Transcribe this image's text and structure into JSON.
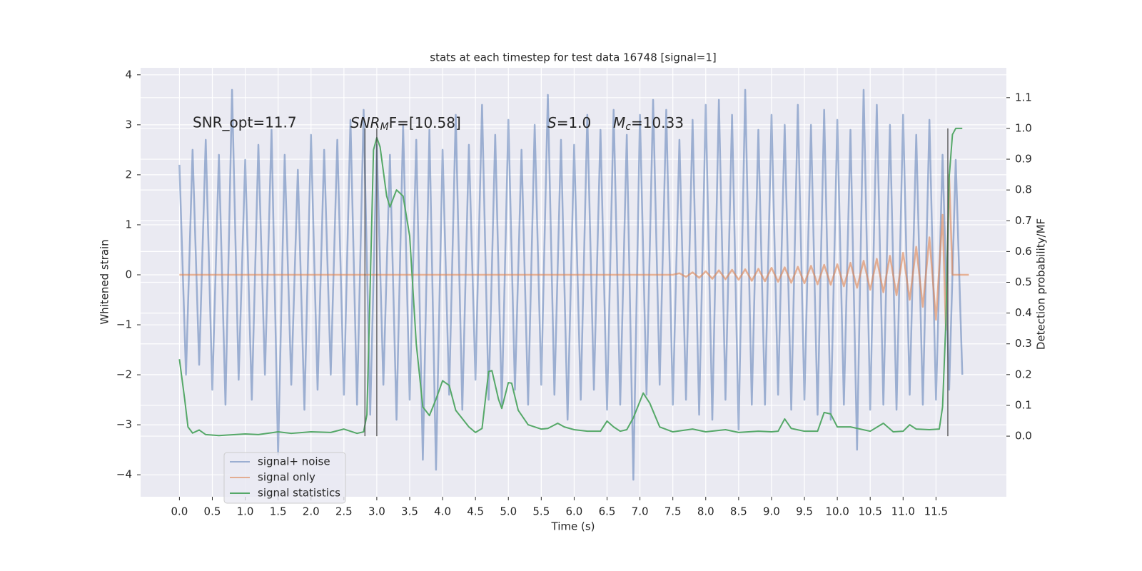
{
  "chart_data": {
    "type": "line",
    "title": "stats at each timestep for test data 16748 [signal=1]",
    "x_label": "Time (s)",
    "y_label": "Whitened strain",
    "y2_label": "Detection probability/MF",
    "xlim": [
      -0.59,
      12.57
    ],
    "ylim": [
      -4.44,
      4.14
    ],
    "y2lim": [
      -0.197,
      1.197
    ],
    "xticks": [
      {
        "value": 0,
        "label": "0.0"
      },
      {
        "value": 0.5,
        "label": "0.5"
      },
      {
        "value": 1,
        "label": "1.0"
      },
      {
        "value": 1.5,
        "label": "1.5"
      },
      {
        "value": 2,
        "label": "2.0"
      },
      {
        "value": 2.5,
        "label": "2.5"
      },
      {
        "value": 3,
        "label": "3.0"
      },
      {
        "value": 3.5,
        "label": "3.5"
      },
      {
        "value": 4,
        "label": "4.0"
      },
      {
        "value": 4.5,
        "label": "4.5"
      },
      {
        "value": 5,
        "label": "5.0"
      },
      {
        "value": 5.5,
        "label": "5.5"
      },
      {
        "value": 6,
        "label": "6.0"
      },
      {
        "value": 6.5,
        "label": "6.5"
      },
      {
        "value": 7,
        "label": "7.0"
      },
      {
        "value": 7.5,
        "label": "7.5"
      },
      {
        "value": 8,
        "label": "8.0"
      },
      {
        "value": 8.5,
        "label": "8.5"
      },
      {
        "value": 9,
        "label": "9.0"
      },
      {
        "value": 9.5,
        "label": "9.5"
      },
      {
        "value": 10,
        "label": "10.0"
      },
      {
        "value": 10.5,
        "label": "10.5"
      },
      {
        "value": 11,
        "label": "11.0"
      },
      {
        "value": 11.5,
        "label": "11.5"
      }
    ],
    "yticks": [
      {
        "value": -4,
        "label": "−4"
      },
      {
        "value": -3,
        "label": "−3"
      },
      {
        "value": -2,
        "label": "−2"
      },
      {
        "value": -1,
        "label": "−1"
      },
      0,
      1,
      2,
      3,
      4
    ],
    "y2ticks": [
      {
        "value": 0,
        "label": "0.0"
      },
      {
        "value": 0.1,
        "label": "0.1"
      },
      {
        "value": 0.2,
        "label": "0.2"
      },
      {
        "value": 0.3,
        "label": "0.3"
      },
      {
        "value": 0.4,
        "label": "0.4"
      },
      {
        "value": 0.5,
        "label": "0.5"
      },
      {
        "value": 0.6,
        "label": "0.6"
      },
      {
        "value": 0.7,
        "label": "0.7"
      },
      {
        "value": 0.8,
        "label": "0.8"
      },
      {
        "value": 0.9,
        "label": "0.9"
      },
      {
        "value": 1,
        "label": "1.0"
      },
      {
        "value": 1.1,
        "label": "1.1"
      }
    ],
    "grid": true,
    "legend": "lower left",
    "series": [
      {
        "name": "signal+ noise",
        "color": "#4c72b0",
        "opacity": 0.5,
        "x": [
          0,
          0.1,
          0.2,
          0.3,
          0.4,
          0.5,
          0.6,
          0.7,
          0.8,
          0.9,
          1,
          1.1,
          1.2,
          1.3,
          1.4,
          1.5,
          1.6,
          1.7,
          1.8,
          1.9,
          2,
          2.1,
          2.2,
          2.3,
          2.4,
          2.5,
          2.6,
          2.7,
          2.8,
          2.9,
          3,
          3.1,
          3.2,
          3.3,
          3.4,
          3.5,
          3.6,
          3.7,
          3.8,
          3.9,
          4,
          4.1,
          4.2,
          4.3,
          4.4,
          4.5,
          4.6,
          4.7,
          4.8,
          4.9,
          5,
          5.1,
          5.2,
          5.3,
          5.4,
          5.5,
          5.6,
          5.7,
          5.8,
          5.9,
          6,
          6.1,
          6.2,
          6.3,
          6.4,
          6.5,
          6.6,
          6.7,
          6.8,
          6.9,
          7,
          7.1,
          7.2,
          7.3,
          7.4,
          7.5,
          7.6,
          7.7,
          7.8,
          7.9,
          8,
          8.1,
          8.2,
          8.3,
          8.4,
          8.5,
          8.6,
          8.7,
          8.8,
          8.9,
          9,
          9.1,
          9.2,
          9.3,
          9.4,
          9.5,
          9.6,
          9.7,
          9.8,
          9.9,
          10,
          10.1,
          10.2,
          10.3,
          10.4,
          10.5,
          10.6,
          10.7,
          10.8,
          10.9,
          11,
          11.1,
          11.2,
          11.3,
          11.4,
          11.5,
          11.6,
          11.7,
          11.8,
          11.9
        ],
        "values": [
          2.2,
          -2.0,
          2.5,
          -1.8,
          2.7,
          -2.3,
          2.4,
          -2.6,
          3.7,
          -2.1,
          2.3,
          -2.5,
          2.6,
          -2.0,
          2.9,
          -3.6,
          2.4,
          -2.2,
          2.1,
          -2.7,
          2.8,
          -2.3,
          2.5,
          -2.0,
          2.7,
          -2.4,
          3.1,
          -2.6,
          3.3,
          -2.8,
          2.6,
          -2.2,
          2.4,
          -2.9,
          3.0,
          -2.5,
          2.7,
          -3.7,
          2.9,
          -3.9,
          2.5,
          -2.4,
          3.2,
          -2.7,
          2.6,
          -2.1,
          3.4,
          -2.5,
          2.8,
          -2.6,
          3.1,
          -2.3,
          2.5,
          -2.6,
          3.0,
          -2.2,
          3.6,
          -2.4,
          2.7,
          -2.9,
          2.6,
          -2.5,
          3.2,
          -2.3,
          2.9,
          -2.7,
          3.3,
          -2.6,
          2.8,
          -4.1,
          3.2,
          -2.4,
          3.5,
          -2.2,
          3.3,
          -2.6,
          2.7,
          -2.5,
          3.1,
          -2.8,
          3.4,
          -2.9,
          3.5,
          -2.5,
          3.2,
          -3.1,
          3.7,
          -2.6,
          2.9,
          -2.6,
          3.2,
          -2.4,
          3.0,
          -2.7,
          3.4,
          -2.5,
          3.0,
          -2.8,
          3.3,
          -2.9,
          3.1,
          -2.6,
          2.9,
          -3.5,
          3.7,
          -2.7,
          3.4,
          -2.6,
          3.0,
          -2.7,
          3.2,
          -2.4,
          2.8,
          -2.6,
          3.1,
          -2.5,
          2.4,
          -2.3,
          2.3,
          -2.0
        ]
      },
      {
        "name": "signal only",
        "color": "#dd8452",
        "opacity": 0.6,
        "x": [
          0,
          7.5,
          7.6,
          7.7,
          7.8,
          7.9,
          8,
          8.1,
          8.2,
          8.3,
          8.4,
          8.5,
          8.6,
          8.7,
          8.8,
          8.9,
          9,
          9.1,
          9.2,
          9.3,
          9.4,
          9.5,
          9.6,
          9.7,
          9.8,
          9.9,
          10,
          10.1,
          10.2,
          10.3,
          10.4,
          10.5,
          10.6,
          10.7,
          10.8,
          10.9,
          11,
          11.1,
          11.2,
          11.3,
          11.4,
          11.5,
          11.6,
          11.65,
          11.7,
          11.75,
          12
        ],
        "values": [
          0,
          0,
          0.03,
          -0.04,
          0.05,
          -0.06,
          0.07,
          -0.08,
          0.09,
          -0.09,
          0.1,
          -0.1,
          0.11,
          -0.12,
          0.12,
          -0.13,
          0.14,
          -0.14,
          0.15,
          -0.16,
          0.16,
          -0.17,
          0.18,
          -0.19,
          0.2,
          -0.2,
          0.21,
          -0.23,
          0.24,
          -0.26,
          0.28,
          -0.3,
          0.32,
          -0.35,
          0.38,
          -0.41,
          0.44,
          -0.5,
          0.56,
          -0.64,
          0.75,
          -0.9,
          1.2,
          -1.1,
          2.0,
          0,
          0
        ]
      },
      {
        "name": "signal statistics",
        "color": "#55a868",
        "opacity": 1,
        "axis": "y2",
        "x": [
          0,
          0.08,
          0.13,
          0.2,
          0.3,
          0.4,
          0.6,
          1,
          1.2,
          1.5,
          1.7,
          2,
          2.3,
          2.5,
          2.7,
          2.8,
          2.85,
          2.9,
          2.95,
          3,
          3.05,
          3.1,
          3.15,
          3.2,
          3.3,
          3.4,
          3.5,
          3.6,
          3.7,
          3.8,
          3.9,
          4,
          4.1,
          4.2,
          4.4,
          4.5,
          4.6,
          4.7,
          4.75,
          4.85,
          4.9,
          5,
          5.05,
          5.15,
          5.3,
          5.5,
          5.6,
          5.75,
          5.85,
          6,
          6.2,
          6.4,
          6.5,
          6.6,
          6.7,
          6.8,
          6.9,
          7.05,
          7.15,
          7.3,
          7.5,
          7.8,
          8,
          8.3,
          8.5,
          8.8,
          9,
          9.1,
          9.2,
          9.3,
          9.5,
          9.7,
          9.8,
          9.9,
          10,
          10.2,
          10.5,
          10.7,
          10.85,
          11,
          11.1,
          11.2,
          11.4,
          11.55,
          11.6,
          11.65,
          11.7,
          11.75,
          11.8,
          11.9
        ],
        "values": [
          0.25,
          0.12,
          0.03,
          0.01,
          0.02,
          0.005,
          0.002,
          0.007,
          0.005,
          0.014,
          0.009,
          0.014,
          0.012,
          0.023,
          0.009,
          0.014,
          0.07,
          0.49,
          0.93,
          0.97,
          0.94,
          0.86,
          0.78,
          0.745,
          0.8,
          0.78,
          0.65,
          0.3,
          0.095,
          0.067,
          0.12,
          0.18,
          0.165,
          0.084,
          0.03,
          0.012,
          0.025,
          0.21,
          0.213,
          0.12,
          0.09,
          0.174,
          0.172,
          0.084,
          0.037,
          0.023,
          0.025,
          0.042,
          0.03,
          0.021,
          0.016,
          0.016,
          0.049,
          0.03,
          0.016,
          0.021,
          0.06,
          0.14,
          0.107,
          0.03,
          0.014,
          0.023,
          0.014,
          0.021,
          0.012,
          0.016,
          0.014,
          0.016,
          0.056,
          0.025,
          0.016,
          0.016,
          0.077,
          0.072,
          0.03,
          0.03,
          0.016,
          0.042,
          0.014,
          0.016,
          0.037,
          0.023,
          0.021,
          0.023,
          0.095,
          0.37,
          0.84,
          0.98,
          1.0,
          1.0
        ]
      }
    ],
    "vlines": [
      {
        "x": 2.82,
        "from": 0,
        "to": 1
      },
      {
        "x": 3.0,
        "from": 0,
        "to": 1
      },
      {
        "x": 11.68,
        "from": 0,
        "to": 1
      }
    ],
    "annotations": [
      {
        "text": "SNR_opt=11.7"
      },
      {
        "main": "SNR",
        "sub": "M",
        "rest": "F=[10.58]"
      },
      {
        "main": "S",
        "rest": "=1.0"
      },
      {
        "main": "M",
        "sub": "c",
        "rest": "=10.33"
      }
    ]
  }
}
